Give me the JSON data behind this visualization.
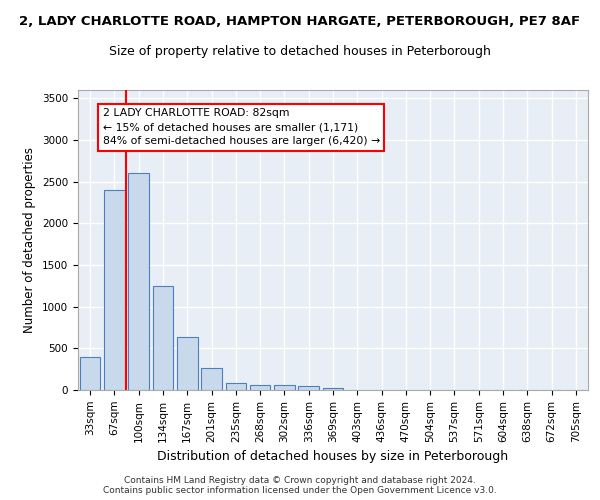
{
  "title_line1": "2, LADY CHARLOTTE ROAD, HAMPTON HARGATE, PETERBOROUGH, PE7 8AF",
  "title_line2": "Size of property relative to detached houses in Peterborough",
  "xlabel": "Distribution of detached houses by size in Peterborough",
  "ylabel": "Number of detached properties",
  "footer": "Contains HM Land Registry data © Crown copyright and database right 2024.\nContains public sector information licensed under the Open Government Licence v3.0.",
  "categories": [
    "33sqm",
    "67sqm",
    "100sqm",
    "134sqm",
    "167sqm",
    "201sqm",
    "235sqm",
    "268sqm",
    "302sqm",
    "336sqm",
    "369sqm",
    "403sqm",
    "436sqm",
    "470sqm",
    "504sqm",
    "537sqm",
    "571sqm",
    "604sqm",
    "638sqm",
    "672sqm",
    "705sqm"
  ],
  "values": [
    400,
    2400,
    2600,
    1250,
    640,
    260,
    90,
    60,
    60,
    50,
    30,
    0,
    0,
    0,
    0,
    0,
    0,
    0,
    0,
    0,
    0
  ],
  "bar_color": "#c9d9ec",
  "bar_edge_color": "#4d7ebd",
  "ylim": [
    0,
    3600
  ],
  "yticks": [
    0,
    500,
    1000,
    1500,
    2000,
    2500,
    3000,
    3500
  ],
  "red_line_x": 1.47,
  "annotation_box_text": "2 LADY CHARLOTTE ROAD: 82sqm\n← 15% of detached houses are smaller (1,171)\n84% of semi-detached houses are larger (6,420) →",
  "bg_color": "#e8eef5",
  "grid_color": "#ffffff",
  "title1_fontsize": 9.5,
  "title2_fontsize": 9.0,
  "ylabel_fontsize": 8.5,
  "xlabel_fontsize": 9.0,
  "tick_fontsize": 7.5,
  "footer_fontsize": 6.5
}
